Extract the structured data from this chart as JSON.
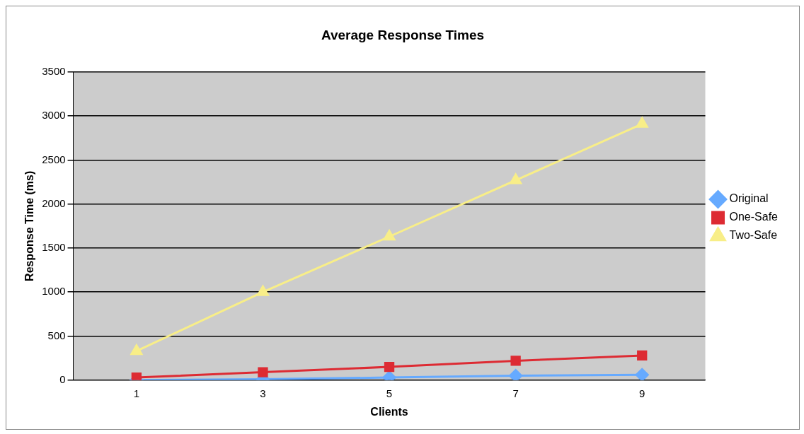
{
  "chart_data": {
    "type": "line",
    "title": "Average Response Times",
    "xlabel": "Clients",
    "ylabel": "Response Time (ms)",
    "categories": [
      "1",
      "3",
      "5",
      "7",
      "9"
    ],
    "series": [
      {
        "name": "Original",
        "color": "#66aaff",
        "marker": "diamond",
        "values": [
          0,
          10,
          30,
          50,
          60
        ]
      },
      {
        "name": "One-Safe",
        "color": "#dd2b33",
        "marker": "square",
        "values": [
          30,
          90,
          150,
          220,
          280
        ]
      },
      {
        "name": "Two-Safe",
        "color": "#f8ee88",
        "marker": "triangle",
        "values": [
          330,
          1000,
          1630,
          2270,
          2910
        ]
      }
    ],
    "ylim": [
      0,
      3500
    ],
    "yticks": [
      0,
      500,
      1000,
      1500,
      2000,
      2500,
      3000,
      3500
    ],
    "grid": "y",
    "legend": "right",
    "line_style": "solid"
  }
}
